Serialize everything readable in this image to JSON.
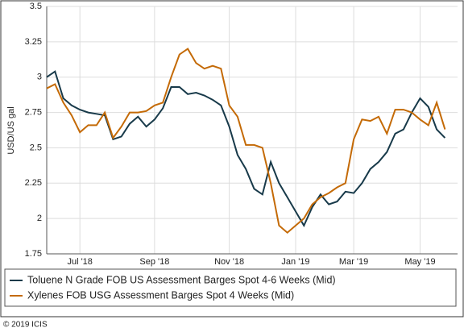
{
  "chart_data": {
    "type": "line",
    "y_label": "USD/US gal",
    "copyright": "© 2019 ICIS",
    "categories": [
      null,
      null,
      null,
      null,
      "Jul '18",
      null,
      null,
      null,
      null,
      null,
      null,
      null,
      null,
      "Sep '18",
      null,
      null,
      null,
      null,
      null,
      null,
      null,
      null,
      "Nov '18",
      null,
      null,
      null,
      null,
      null,
      null,
      null,
      "Jan '19",
      null,
      null,
      null,
      null,
      null,
      null,
      "Mar '19",
      null,
      null,
      null,
      null,
      null,
      null,
      null,
      "May '19",
      null,
      null,
      null
    ],
    "series": [
      {
        "name": "Toluene N Grade FOB US Assessment Barges Spot 4-6 Weeks (Mid)",
        "color": "#183a4a",
        "values": [
          3.0,
          3.04,
          2.85,
          2.8,
          2.77,
          2.75,
          2.74,
          2.73,
          2.56,
          2.58,
          2.67,
          2.72,
          2.65,
          2.7,
          2.78,
          2.93,
          2.93,
          2.88,
          2.89,
          2.87,
          2.84,
          2.8,
          2.65,
          2.45,
          2.35,
          2.21,
          2.17,
          2.4,
          2.25,
          2.15,
          2.05,
          1.95,
          2.08,
          2.17,
          2.1,
          2.12,
          2.19,
          2.18,
          2.25,
          2.35,
          2.4,
          2.47,
          2.6,
          2.63,
          2.75,
          2.85,
          2.79,
          2.63,
          2.57
        ]
      },
      {
        "name": "Xylenes FOB USG Assessment Barges Spot 4 Weeks (Mid)",
        "color": "#c46a06",
        "values": [
          2.92,
          2.95,
          2.82,
          2.73,
          2.61,
          2.66,
          2.66,
          2.75,
          2.57,
          2.65,
          2.75,
          2.75,
          2.76,
          2.8,
          2.82,
          3.0,
          3.16,
          3.2,
          3.1,
          3.06,
          3.08,
          3.06,
          2.8,
          2.72,
          2.52,
          2.52,
          2.5,
          2.25,
          1.95,
          1.9,
          1.95,
          2.0,
          2.1,
          2.15,
          2.18,
          2.22,
          2.25,
          2.56,
          2.7,
          2.69,
          2.72,
          2.6,
          2.77,
          2.77,
          2.75,
          2.7,
          2.66,
          2.82,
          2.63
        ]
      }
    ],
    "ylim": [
      1.75,
      3.5
    ],
    "yticks": [
      1.75,
      2,
      2.25,
      2.5,
      2.75,
      3,
      3.25,
      3.5
    ],
    "grid": true
  }
}
